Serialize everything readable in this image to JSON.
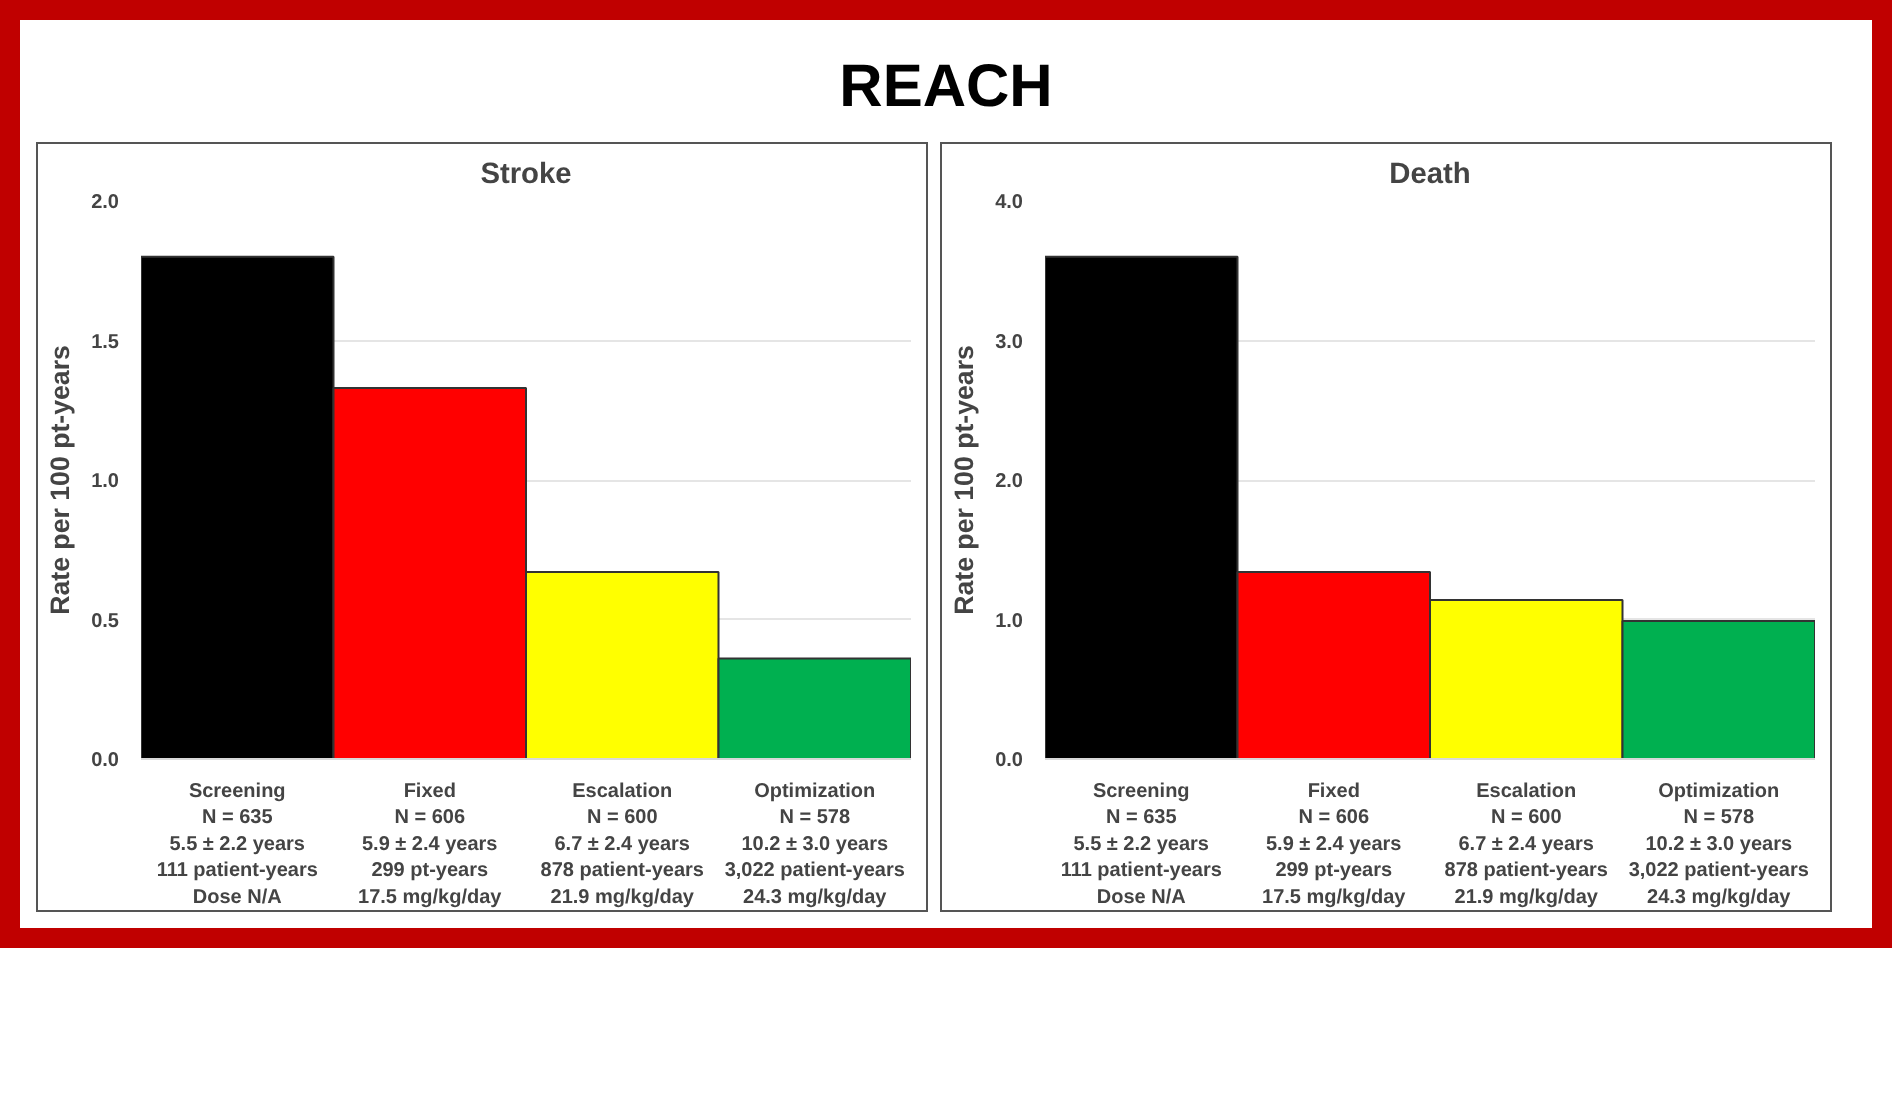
{
  "chart_data": [
    {
      "type": "other",
      "title": "REACH"
    },
    {
      "type": "bar",
      "title": "Stroke",
      "ylabel": "Rate per 100 pt-years",
      "categories": [
        "Screening\nN = 635\n5.5 ± 2.2 years\n111 patient-years\nDose N/A",
        "Fixed\nN = 606\n5.9 ± 2.4 years\n299 pt-years\n17.5 mg/kg/day",
        "Escalation\nN = 600\n6.7 ± 2.4 years\n878 patient-years\n21.9 mg/kg/day",
        "Optimization\nN = 578\n10.2 ± 3.0 years\n3,022 patient-years\n24.3 mg/kg/day"
      ],
      "values": [
        1.8,
        1.33,
        0.67,
        0.36
      ],
      "colors": [
        "#000000",
        "#ff0000",
        "#ffff00",
        "#00b050"
      ],
      "ylim": [
        0,
        2.0
      ],
      "yticks": [
        {
          "value": 0,
          "label": "0.0"
        },
        {
          "value": 0.5,
          "label": "0.5"
        },
        {
          "value": 1.0,
          "label": "1.0"
        },
        {
          "value": 1.5,
          "label": "1.5"
        },
        {
          "value": 2.0,
          "label": "2.0"
        }
      ],
      "grid": "y"
    },
    {
      "type": "bar",
      "title": "Death",
      "ylabel": "Rate per 100 pt-years",
      "categories": [
        "Screening\nN = 635\n5.5 ± 2.2 years\n111 patient-years\nDose N/A",
        "Fixed\nN = 606\n5.9 ± 2.4 years\n299 pt-years\n17.5 mg/kg/day",
        "Escalation\nN = 600\n6.7 ± 2.4 years\n878 patient-years\n21.9 mg/kg/day",
        "Optimization\nN = 578\n10.2 ± 3.0 years\n3,022 patient-years\n24.3 mg/kg/day"
      ],
      "values": [
        3.6,
        1.34,
        1.14,
        0.99
      ],
      "colors": [
        "#000000",
        "#ff0000",
        "#ffff00",
        "#00b050"
      ],
      "ylim": [
        0,
        4.0
      ],
      "yticks": [
        {
          "value": 0,
          "label": "0.0"
        },
        {
          "value": 1.0,
          "label": "1.0"
        },
        {
          "value": 2.0,
          "label": "2.0"
        },
        {
          "value": 3.0,
          "label": "3.0"
        },
        {
          "value": 4.0,
          "label": "4.0"
        }
      ],
      "grid": "y"
    }
  ]
}
